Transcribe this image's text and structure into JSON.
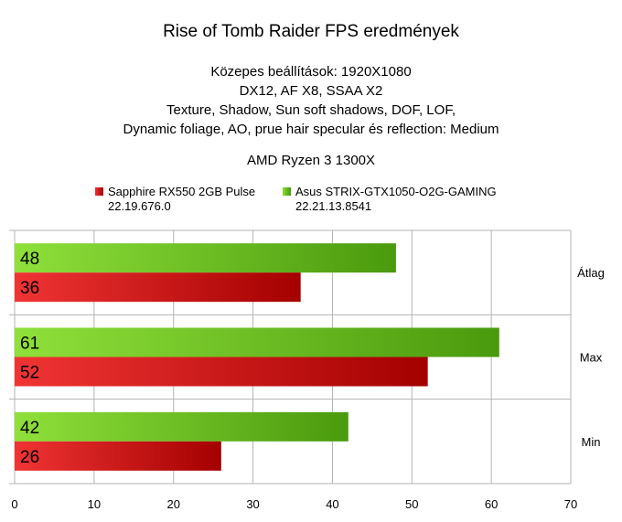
{
  "title": "Rise of Tomb Raider FPS eredmények",
  "subtitle_lines": [
    "Közepes beállítások: 1920X1080",
    "DX12, AF X8, SSAA X2",
    "Texture, Shadow, Sun soft shadows, DOF, LOF,",
    "Dynamic foliage, AO, prue hair specular és reflection: Medium"
  ],
  "cpu_line": "AMD Ryzen 3 1300X",
  "colors": {
    "red": "#cc1111",
    "green": "#66bb22",
    "grid": "#b3b3b3"
  },
  "chart_data": {
    "type": "bar",
    "orientation": "horizontal",
    "categories": [
      "Átlag",
      "Max",
      "Min"
    ],
    "series": [
      {
        "name": "Asus STRIX-GTX1050-O2G-GAMING",
        "name_line2": "22.21.13.8541",
        "color": "#66bb22",
        "values": [
          48,
          61,
          42
        ]
      },
      {
        "name": "Sapphire RX550 2GB Pulse",
        "name_line2": "22.19.676.0",
        "color": "#cc1111",
        "values": [
          36,
          52,
          26
        ]
      }
    ],
    "xlim": [
      0,
      70
    ],
    "xticks": [
      0,
      10,
      20,
      30,
      40,
      50,
      60,
      70
    ],
    "grid": true,
    "legend_position": "top"
  }
}
